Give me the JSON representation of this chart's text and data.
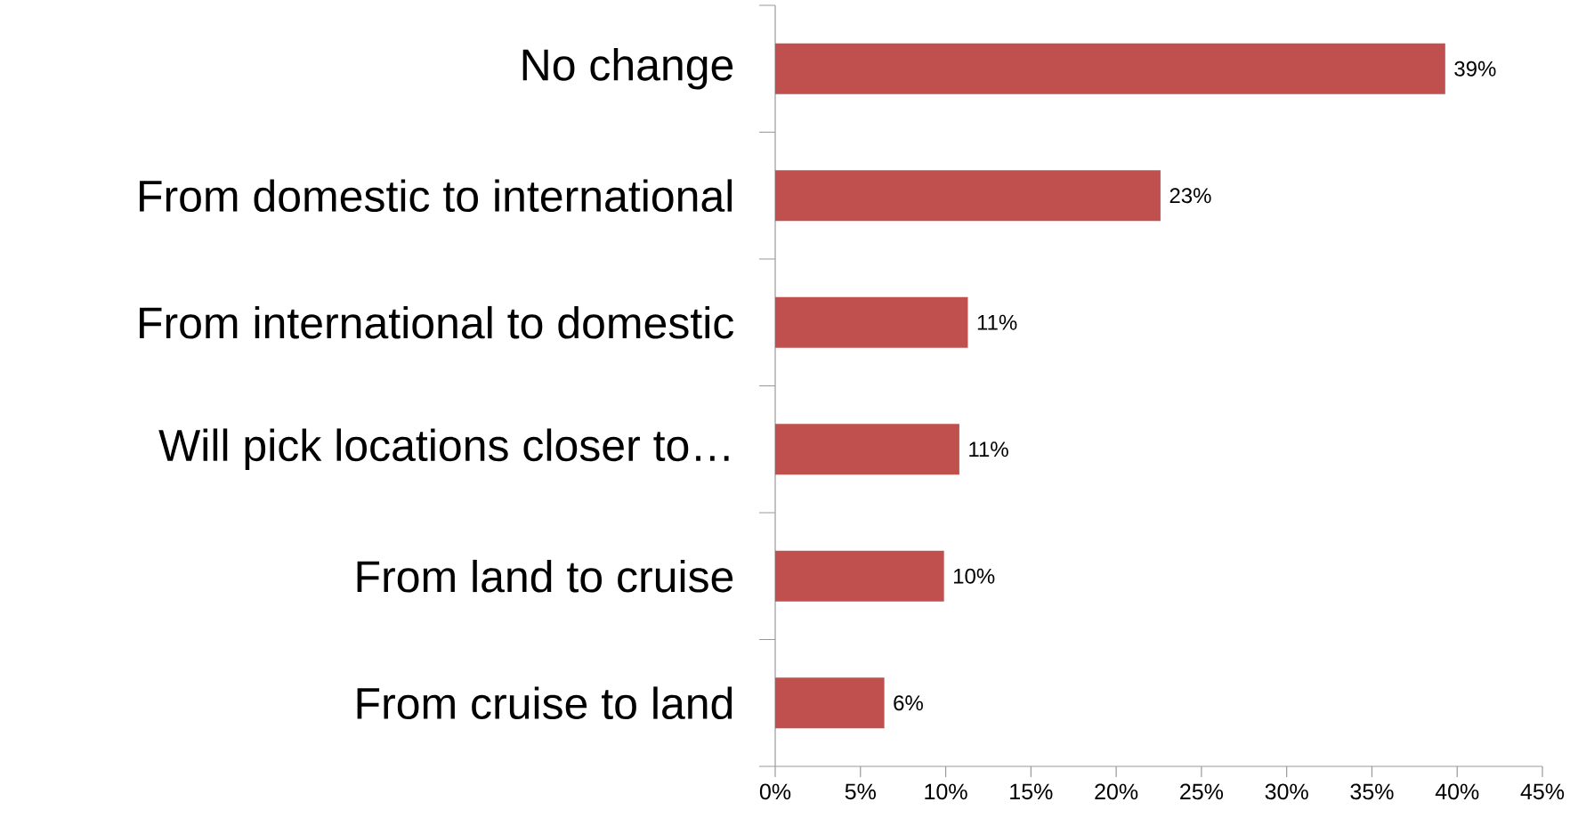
{
  "chart_data": {
    "type": "bar",
    "orientation": "horizontal",
    "categories": [
      "No change",
      "From domestic to international",
      "From international to domestic",
      "Will pick locations closer to…",
      "From land to cruise",
      "From cruise to land"
    ],
    "values": [
      39.3,
      22.6,
      11.3,
      10.8,
      9.9,
      6.4
    ],
    "value_labels": [
      "39%",
      "23%",
      "11%",
      "11%",
      "10%",
      "6%"
    ],
    "color": "#c0504d",
    "xlim": [
      0,
      45
    ],
    "xticks": [
      {
        "value": 0,
        "label": "0%"
      },
      {
        "value": 5,
        "label": "5%"
      },
      {
        "value": 10,
        "label": "10%"
      },
      {
        "value": 15,
        "label": "15%"
      },
      {
        "value": 20,
        "label": "20%"
      },
      {
        "value": 25,
        "label": "25%"
      },
      {
        "value": 30,
        "label": "30%"
      },
      {
        "value": 35,
        "label": "35%"
      },
      {
        "value": 40,
        "label": "40%"
      },
      {
        "value": 45,
        "label": "45%"
      }
    ]
  }
}
